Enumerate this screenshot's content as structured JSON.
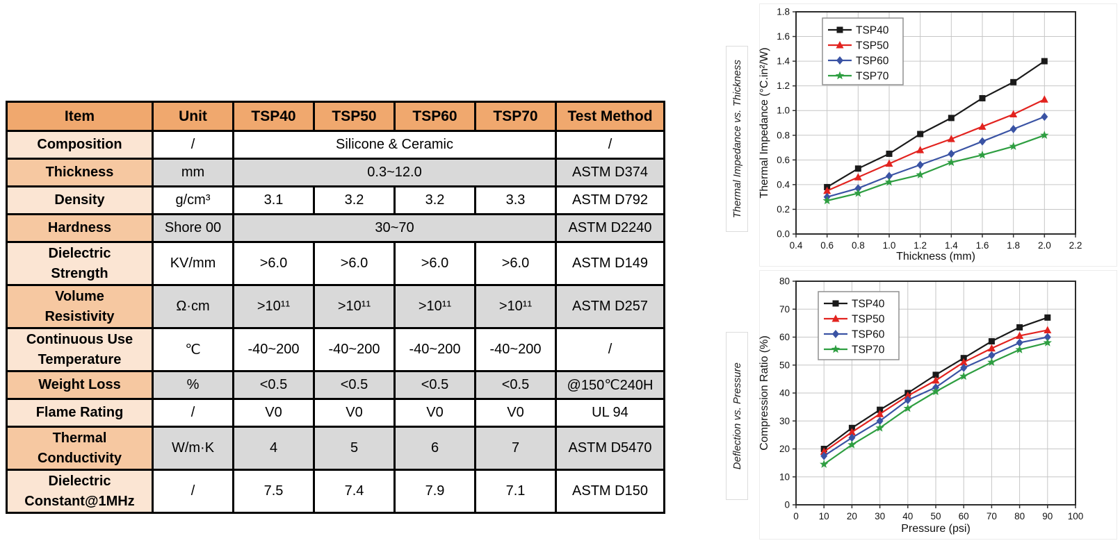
{
  "table": {
    "headers": [
      "Item",
      "Unit",
      "TSP40",
      "TSP50",
      "TSP60",
      "TSP70",
      "Test Method"
    ],
    "rows": [
      {
        "item": "Composition",
        "unit": "/",
        "span": "Silicone & Ceramic",
        "method": "/"
      },
      {
        "item": "Thickness",
        "unit": "mm",
        "span": "0.3~12.0",
        "method": "ASTM D374"
      },
      {
        "item": "Density",
        "unit": "g/cm³",
        "values": [
          "3.1",
          "3.2",
          "3.2",
          "3.3"
        ],
        "method": "ASTM D792"
      },
      {
        "item": "Hardness",
        "unit": "Shore 00",
        "span": "30~70",
        "method": "ASTM D2240"
      },
      {
        "item": "Dielectric\nStrength",
        "unit": "KV/mm",
        "values": [
          ">6.0",
          ">6.0",
          ">6.0",
          ">6.0"
        ],
        "method": "ASTM D149"
      },
      {
        "item": "Volume\nResistivity",
        "unit": "Ω·cm",
        "values": [
          ">10¹¹",
          ">10¹¹",
          ">10¹¹",
          ">10¹¹"
        ],
        "method": "ASTM D257"
      },
      {
        "item": "Continuous Use\nTemperature",
        "unit": "℃",
        "values": [
          "-40~200",
          "-40~200",
          "-40~200",
          "-40~200"
        ],
        "method": "/"
      },
      {
        "item": "Weight Loss",
        "unit": "%",
        "values": [
          "<0.5",
          "<0.5",
          "<0.5",
          "<0.5"
        ],
        "method": "@150℃240H"
      },
      {
        "item": "Flame Rating",
        "unit": "/",
        "values": [
          "V0",
          "V0",
          "V0",
          "V0"
        ],
        "method": "UL 94"
      },
      {
        "item": "Thermal\nConductivity",
        "unit": "W/m·K",
        "values": [
          "4",
          "5",
          "6",
          "7"
        ],
        "method": "ASTM D5470"
      },
      {
        "item": "Dielectric\nConstant@1MHz",
        "unit": "/",
        "values": [
          "7.5",
          "7.4",
          "7.9",
          "7.1"
        ],
        "method": "ASTM D150"
      }
    ],
    "colors": {
      "header_bg": "#f0a86e",
      "item_row_dark_bg": "#f6c8a1",
      "item_row_light_bg": "#fbe5d3",
      "cell_gray_bg": "#d9d9d9",
      "border": "#000000"
    }
  },
  "chart_data": [
    {
      "type": "line",
      "title": "Thermal Impedance vs. Thickness",
      "xlabel": "Thickness (mm)",
      "ylabel": "Thermal Impedance (°C.in²/W)",
      "xlim": [
        0.4,
        2.2
      ],
      "ylim": [
        0.0,
        1.8
      ],
      "xticks": [
        "0.4",
        "0.6",
        "0.8",
        "1.0",
        "1.2",
        "1.4",
        "1.6",
        "1.8",
        "2.0",
        "2.2"
      ],
      "yticks": [
        "0.0",
        "0.2",
        "0.4",
        "0.6",
        "0.8",
        "1.0",
        "1.2",
        "1.4",
        "1.6",
        "1.8"
      ],
      "grid": true,
      "legend_position": "upper-left",
      "x": [
        0.6,
        0.8,
        1.0,
        1.2,
        1.4,
        1.6,
        1.8,
        2.0
      ],
      "series": [
        {
          "name": "TSP40",
          "color": "#1a1a1a",
          "marker": "square",
          "values": [
            0.38,
            0.53,
            0.65,
            0.81,
            0.94,
            1.1,
            1.23,
            1.4
          ]
        },
        {
          "name": "TSP50",
          "color": "#e2231f",
          "marker": "triangle",
          "values": [
            0.35,
            0.46,
            0.57,
            0.68,
            0.77,
            0.87,
            0.97,
            1.09
          ]
        },
        {
          "name": "TSP60",
          "color": "#3a53a4",
          "marker": "diamond",
          "values": [
            0.3,
            0.37,
            0.47,
            0.56,
            0.65,
            0.75,
            0.85,
            0.95
          ]
        },
        {
          "name": "TSP70",
          "color": "#2e9e41",
          "marker": "star",
          "values": [
            0.27,
            0.33,
            0.42,
            0.48,
            0.58,
            0.64,
            0.71,
            0.8
          ]
        }
      ]
    },
    {
      "type": "line",
      "title": "Deflection vs. Pressure",
      "xlabel": "Pressure (psi)",
      "ylabel": "Compression Ratio (%)",
      "xlim": [
        0,
        100
      ],
      "ylim": [
        0,
        80
      ],
      "xticks": [
        "0",
        "10",
        "20",
        "30",
        "40",
        "50",
        "60",
        "70",
        "80",
        "90",
        "100"
      ],
      "yticks": [
        "0",
        "10",
        "20",
        "30",
        "40",
        "50",
        "60",
        "70",
        "80"
      ],
      "grid": true,
      "legend_position": "upper-left",
      "x": [
        10,
        20,
        30,
        40,
        50,
        60,
        70,
        80,
        90
      ],
      "series": [
        {
          "name": "TSP40",
          "color": "#1a1a1a",
          "marker": "square",
          "values": [
            20,
            27.5,
            34,
            40,
            46.5,
            52.5,
            58.5,
            63.5,
            67
          ]
        },
        {
          "name": "TSP50",
          "color": "#e2231f",
          "marker": "triangle",
          "values": [
            19,
            26,
            32.5,
            39,
            44.5,
            51,
            56,
            60.5,
            62.5
          ]
        },
        {
          "name": "TSP60",
          "color": "#3a53a4",
          "marker": "diamond",
          "values": [
            17.5,
            24,
            30,
            37.5,
            42,
            49,
            53.5,
            58,
            60
          ]
        },
        {
          "name": "TSP70",
          "color": "#2e9e41",
          "marker": "star",
          "values": [
            14.5,
            21.5,
            27.5,
            34.5,
            40.5,
            46,
            51,
            55.5,
            58
          ]
        }
      ]
    }
  ]
}
